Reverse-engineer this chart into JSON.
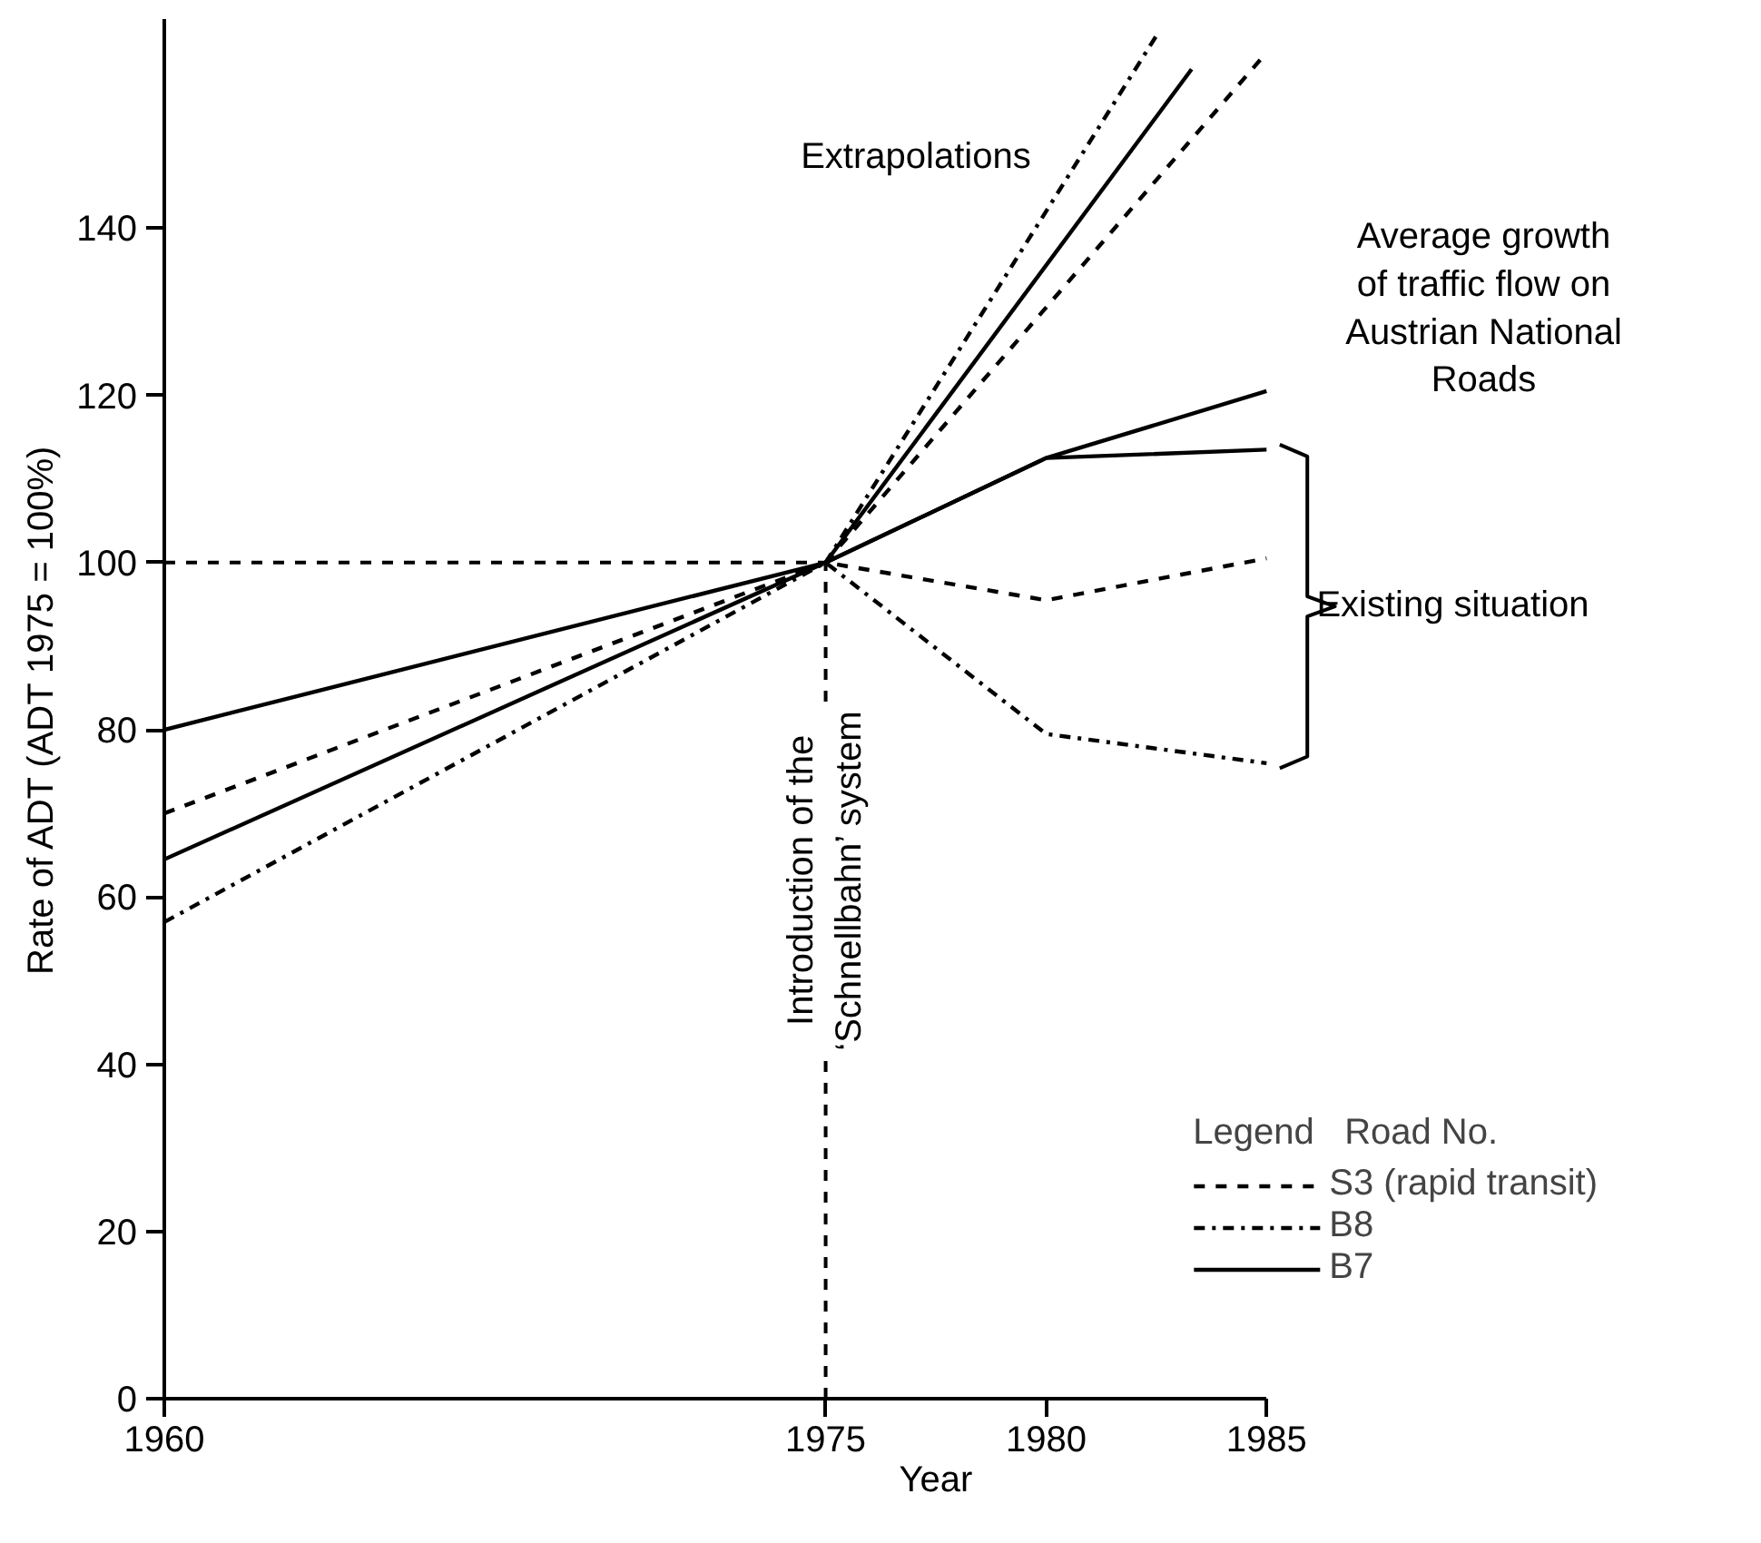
{
  "chart_data": {
    "type": "line",
    "xlabel": "Year",
    "ylabel": "Rate of ADT (ADT 1975 = 100%)",
    "x": [
      1960,
      1975,
      1980,
      1985
    ],
    "series": [
      {
        "name": "S3 (rapid transit)",
        "color": "#000000",
        "line_style": "dashed",
        "values": [
          70,
          100,
          95.5,
          100.5
        ]
      },
      {
        "name": "B8",
        "color": "#000000",
        "line_style": "dashdot",
        "values": [
          57,
          100,
          79.5,
          76
        ]
      },
      {
        "name": "B7",
        "color": "#000000",
        "line_style": "solid",
        "values": [
          64.5,
          100,
          112.5,
          113.5
        ]
      },
      {
        "color": "#000000",
        "line_style": "solid",
        "values": [
          80,
          100,
          112.5,
          120.5
        ]
      },
      {
        "color": "#000000",
        "line_style": "dashed",
        "x": [
          1975,
          1985
        ],
        "values": [
          100,
          161
        ]
      },
      {
        "color": "#000000",
        "line_style": "dashdot",
        "x": [
          1975,
          1982.5
        ],
        "values": [
          100,
          163
        ]
      },
      {
        "color": "#000000",
        "line_style": "solid",
        "x": [
          1975,
          1983.3
        ],
        "values": [
          100,
          159
        ]
      }
    ],
    "xlim": [
      1960,
      1985
    ],
    "xticks": [
      1960,
      1975,
      1980,
      1985
    ],
    "ylim": [
      0,
      165
    ],
    "yticks": [
      0,
      20,
      40,
      60,
      80,
      100,
      120,
      140
    ],
    "ref_lines": [
      {
        "axis": "y",
        "value": 100,
        "color": "#000000",
        "line_style": "dashed"
      },
      {
        "axis": "x",
        "value": 1975,
        "label": "Introduction of the\n‘Schnellbahn’ system",
        "color": "#000000",
        "line_style": "dashed"
      }
    ],
    "annotations": [
      "Extrapolations",
      "Average growth\nof traffic flow on\nAustrian National\nRoads",
      "Existing situation"
    ],
    "legend_title": "Legend   Road No.",
    "legend": "bottom right",
    "grid": false,
    "marker": "none"
  }
}
